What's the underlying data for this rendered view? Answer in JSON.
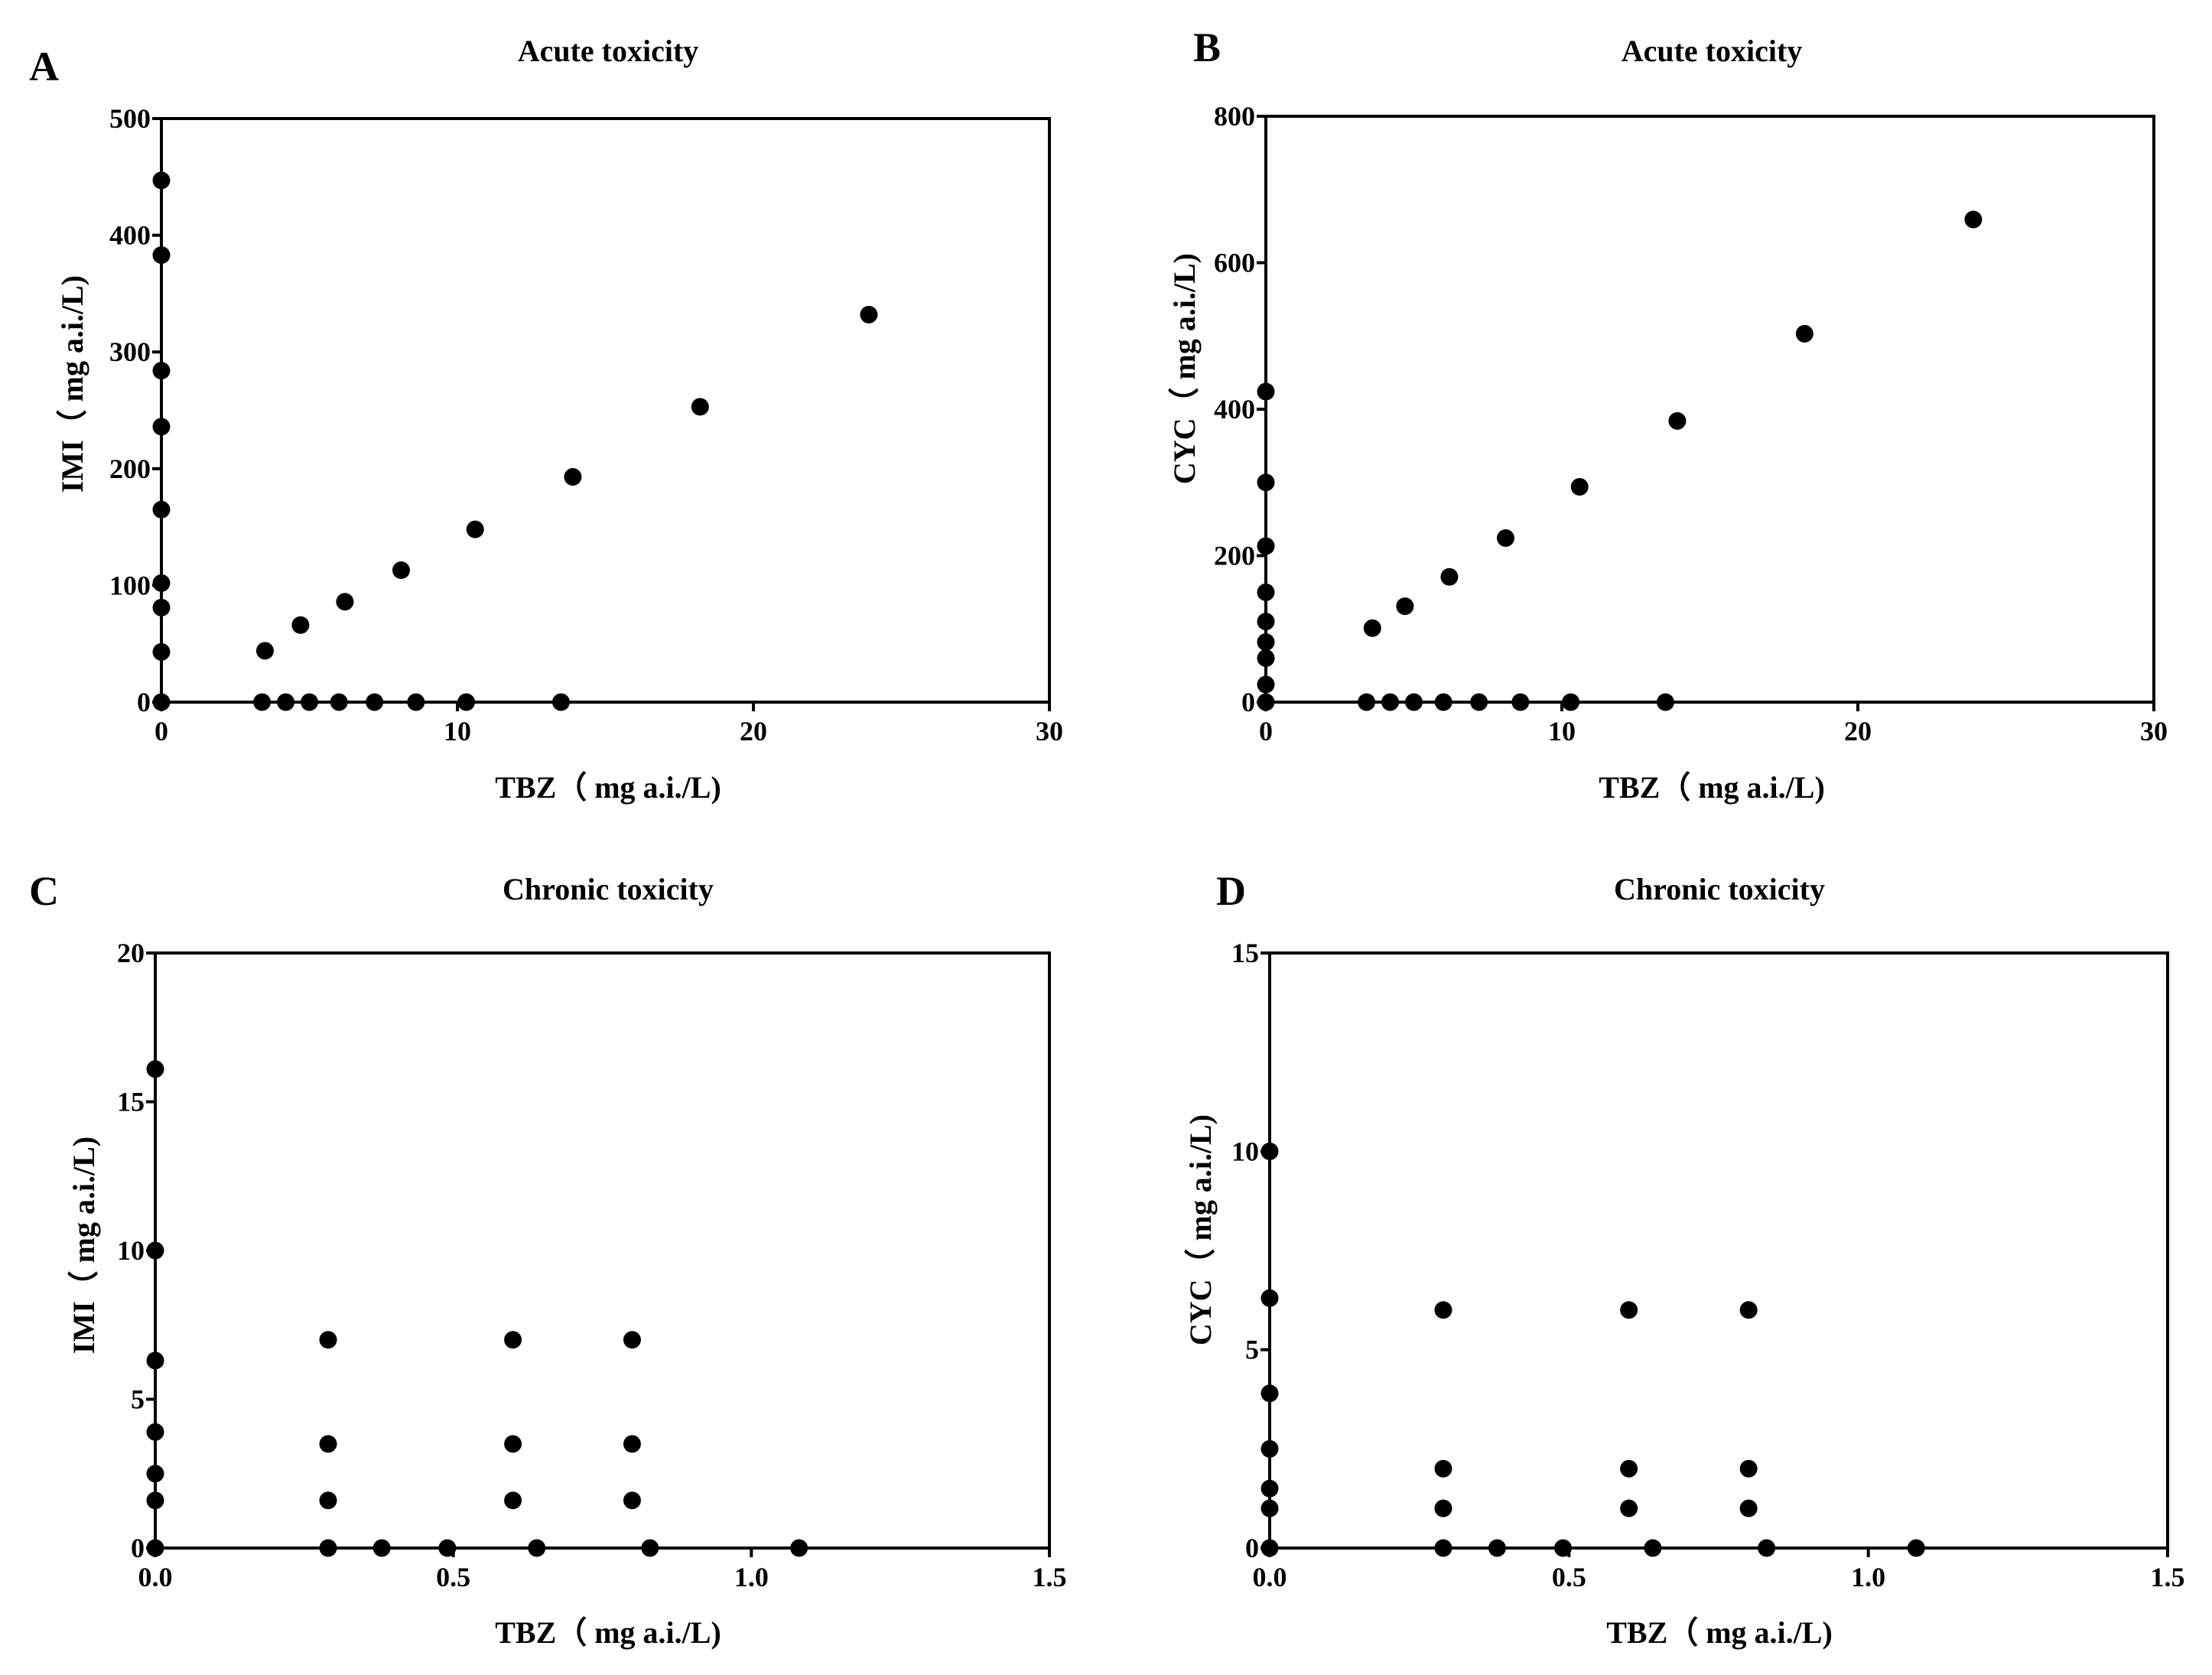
{
  "chart_data": [
    {
      "panel": "A",
      "type": "scatter",
      "title": "Acute toxicity",
      "xlabel": "TBZ（ mg a.i./L)",
      "ylabel": "IMI（ mg a.i./L)",
      "xlim": [
        0,
        30
      ],
      "ylim": [
        0,
        500
      ],
      "xticks": [
        0,
        10,
        20,
        30
      ],
      "yticks": [
        0,
        100,
        200,
        300,
        400,
        500
      ],
      "xtick_labels": [
        "0",
        "10",
        "20",
        "30"
      ],
      "ytick_labels": [
        "0",
        "100",
        "200",
        "300",
        "400",
        "500"
      ],
      "points": [
        [
          0,
          447
        ],
        [
          0,
          383
        ],
        [
          0,
          284
        ],
        [
          0,
          236
        ],
        [
          0,
          165
        ],
        [
          0,
          102
        ],
        [
          0,
          81
        ],
        [
          0,
          43
        ],
        [
          0,
          0
        ],
        [
          3.5,
          44
        ],
        [
          4.7,
          66
        ],
        [
          6.2,
          86
        ],
        [
          8.1,
          113
        ],
        [
          10.6,
          148
        ],
        [
          13.9,
          193
        ],
        [
          18.2,
          253
        ],
        [
          23.9,
          332
        ],
        [
          3.4,
          0
        ],
        [
          4.2,
          0
        ],
        [
          5.0,
          0
        ],
        [
          6.0,
          0
        ],
        [
          7.2,
          0
        ],
        [
          8.6,
          0
        ],
        [
          10.3,
          0
        ],
        [
          13.5,
          0
        ]
      ]
    },
    {
      "panel": "B",
      "type": "scatter",
      "title": "Acute toxicity",
      "xlabel": "TBZ（  mg a.i./L)",
      "ylabel": "CYC（ mg a.i./L)",
      "xlim": [
        0,
        30
      ],
      "ylim": [
        0,
        800
      ],
      "xticks": [
        0,
        10,
        20,
        30
      ],
      "yticks": [
        0,
        200,
        400,
        600,
        800
      ],
      "xtick_labels": [
        "0",
        "10",
        "20",
        "30"
      ],
      "ytick_labels": [
        "0",
        "200",
        "400",
        "600",
        "800"
      ],
      "points": [
        [
          0,
          424
        ],
        [
          0,
          300
        ],
        [
          0,
          213
        ],
        [
          0,
          150
        ],
        [
          0,
          110
        ],
        [
          0,
          82
        ],
        [
          0,
          60
        ],
        [
          0,
          24
        ],
        [
          0,
          0
        ],
        [
          3.6,
          101
        ],
        [
          4.7,
          131
        ],
        [
          6.2,
          171
        ],
        [
          8.1,
          224
        ],
        [
          10.6,
          294
        ],
        [
          13.9,
          384
        ],
        [
          18.2,
          503
        ],
        [
          23.9,
          659
        ],
        [
          3.4,
          0
        ],
        [
          4.2,
          0
        ],
        [
          5.0,
          0
        ],
        [
          6.0,
          0
        ],
        [
          7.2,
          0
        ],
        [
          8.6,
          0
        ],
        [
          10.3,
          0
        ],
        [
          13.5,
          0
        ]
      ]
    },
    {
      "panel": "C",
      "type": "scatter",
      "title": "Chronic toxicity",
      "xlabel": "TBZ（ mg a.i./L)",
      "ylabel": "IMI（ mg a.i./L)",
      "xlim": [
        0,
        1.5
      ],
      "ylim": [
        0,
        20
      ],
      "xticks": [
        0,
        0.5,
        1.0,
        1.5
      ],
      "yticks": [
        0,
        5,
        10,
        15,
        20
      ],
      "xtick_labels": [
        "0.0",
        "0.5",
        "1.0",
        "1.5"
      ],
      "ytick_labels": [
        "0",
        "5",
        "10",
        "15",
        "20"
      ],
      "points": [
        [
          0,
          16.1
        ],
        [
          0,
          10.0
        ],
        [
          0,
          6.3
        ],
        [
          0,
          3.9
        ],
        [
          0,
          2.5
        ],
        [
          0,
          1.6
        ],
        [
          0,
          0
        ],
        [
          0.29,
          7.0
        ],
        [
          0.29,
          3.5
        ],
        [
          0.29,
          1.6
        ],
        [
          0.29,
          0
        ],
        [
          0.6,
          7.0
        ],
        [
          0.6,
          3.5
        ],
        [
          0.6,
          1.6
        ],
        [
          0.8,
          7.0
        ],
        [
          0.8,
          3.5
        ],
        [
          0.8,
          1.6
        ],
        [
          0.38,
          0
        ],
        [
          0.49,
          0
        ],
        [
          0.64,
          0
        ],
        [
          0.83,
          0
        ],
        [
          1.08,
          0
        ]
      ]
    },
    {
      "panel": "D",
      "type": "scatter",
      "title": "Chronic toxicity",
      "xlabel": "TBZ（ mg a.i./L)",
      "ylabel": "CYC（ mg a.i./L)",
      "xlim": [
        0,
        1.5
      ],
      "ylim": [
        0,
        15
      ],
      "xticks": [
        0,
        0.5,
        1.0,
        1.5
      ],
      "yticks": [
        0,
        5,
        10,
        15
      ],
      "xtick_labels": [
        "0.0",
        "0.5",
        "1.0",
        "1.5"
      ],
      "ytick_labels": [
        "0",
        "5",
        "10",
        "15"
      ],
      "points": [
        [
          0,
          10.0
        ],
        [
          0,
          6.3
        ],
        [
          0,
          3.9
        ],
        [
          0,
          2.5
        ],
        [
          0,
          1.5
        ],
        [
          0,
          1.0
        ],
        [
          0,
          0
        ],
        [
          0.29,
          6.0
        ],
        [
          0.29,
          2.0
        ],
        [
          0.29,
          1.0
        ],
        [
          0.29,
          0
        ],
        [
          0.6,
          6.0
        ],
        [
          0.6,
          2.0
        ],
        [
          0.6,
          1.0
        ],
        [
          0.8,
          6.0
        ],
        [
          0.8,
          2.0
        ],
        [
          0.8,
          1.0
        ],
        [
          0.38,
          0
        ],
        [
          0.49,
          0
        ],
        [
          0.64,
          0
        ],
        [
          0.83,
          0
        ],
        [
          1.08,
          0
        ]
      ]
    }
  ]
}
